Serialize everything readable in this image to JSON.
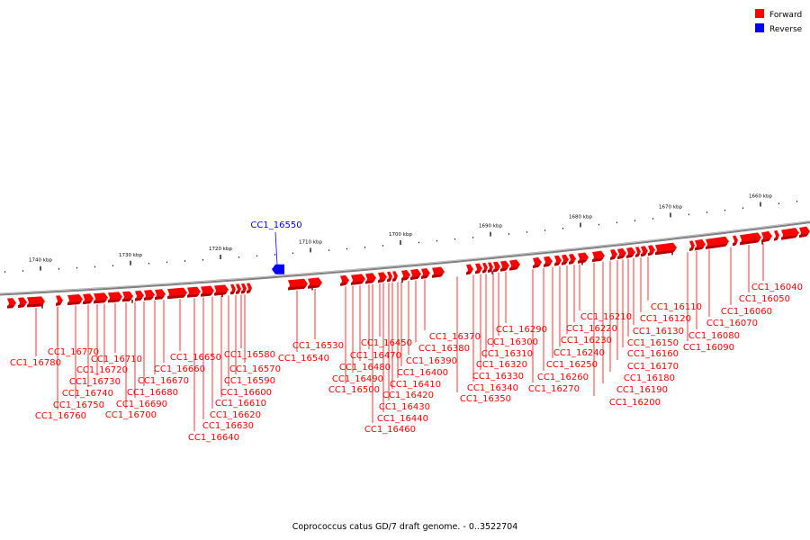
{
  "legend": [
    {
      "label": "Forward",
      "color": "#ff0000"
    },
    {
      "label": "Reverse",
      "color": "#0000ff"
    }
  ],
  "caption": "Coprococcus catus GD/7 draft genome. - 0..3522704",
  "colors": {
    "forward": "#ff0000",
    "reverse": "#0000ff",
    "backbone": "#808080"
  },
  "scale_ticks": [
    {
      "kbp": 1740,
      "label": "1740 kbp"
    },
    {
      "kbp": 1730,
      "label": "1730 kbp"
    },
    {
      "kbp": 1720,
      "label": "1720 kbp"
    },
    {
      "kbp": 1710,
      "label": "1710 kbp"
    },
    {
      "kbp": 1700,
      "label": "1700 kbp"
    },
    {
      "kbp": 1690,
      "label": "1690 kbp"
    },
    {
      "kbp": 1680,
      "label": "1680 kbp"
    },
    {
      "kbp": 1670,
      "label": "1670 kbp"
    },
    {
      "kbp": 1660,
      "label": "1660 kbp"
    }
  ],
  "highlighted_gene": {
    "label": "CC1_16550",
    "strand": "reverse"
  },
  "gene_labels": [
    "CC1_16780",
    "CC1_16770",
    "CC1_16760",
    "CC1_16750",
    "CC1_16740",
    "CC1_16730",
    "CC1_16720",
    "CC1_16710",
    "CC1_16700",
    "CC1_16690",
    "CC1_16680",
    "CC1_16670",
    "CC1_16660",
    "CC1_16650",
    "CC1_16640",
    "CC1_16630",
    "CC1_16620",
    "CC1_16610",
    "CC1_16600",
    "CC1_16590",
    "CC1_16580",
    "CC1_16570",
    "CC1_16540",
    "CC1_16530",
    "CC1_16500",
    "CC1_16490",
    "CC1_16480",
    "CC1_16470",
    "CC1_16460",
    "CC1_16450",
    "CC1_16440",
    "CC1_16430",
    "CC1_16420",
    "CC1_16410",
    "CC1_16400",
    "CC1_16390",
    "CC1_16380",
    "CC1_16370",
    "CC1_16350",
    "CC1_16340",
    "CC1_16330",
    "CC1_16320",
    "CC1_16310",
    "CC1_16300",
    "CC1_16290",
    "CC1_16270",
    "CC1_16260",
    "CC1_16250",
    "CC1_16240",
    "CC1_16230",
    "CC1_16220",
    "CC1_16210",
    "CC1_16200",
    "CC1_16190",
    "CC1_16180",
    "CC1_16170",
    "CC1_16160",
    "CC1_16150",
    "CC1_16130",
    "CC1_16120",
    "CC1_16110",
    "CC1_16090",
    "CC1_16080",
    "CC1_16070",
    "CC1_16060",
    "CC1_16050",
    "CC1_16040"
  ]
}
